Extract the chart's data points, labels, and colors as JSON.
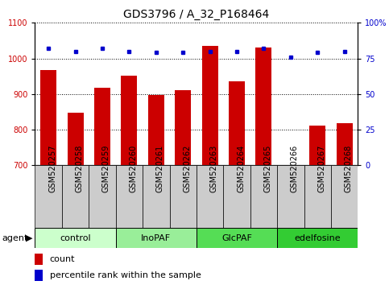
{
  "title": "GDS3796 / A_32_P168464",
  "samples": [
    "GSM520257",
    "GSM520258",
    "GSM520259",
    "GSM520260",
    "GSM520261",
    "GSM520262",
    "GSM520263",
    "GSM520264",
    "GSM520265",
    "GSM520266",
    "GSM520267",
    "GSM520268"
  ],
  "count_values": [
    968,
    848,
    918,
    952,
    898,
    912,
    1035,
    935,
    1030,
    700,
    812,
    818
  ],
  "percentile_values": [
    82,
    80,
    82,
    80,
    79,
    79,
    80,
    80,
    82,
    76,
    79,
    80
  ],
  "groups": [
    {
      "label": "control",
      "start": 0,
      "end": 3,
      "color": "#ccffcc"
    },
    {
      "label": "InoPAF",
      "start": 3,
      "end": 6,
      "color": "#99ee99"
    },
    {
      "label": "GlcPAF",
      "start": 6,
      "end": 9,
      "color": "#55dd55"
    },
    {
      "label": "edelfosine",
      "start": 9,
      "end": 12,
      "color": "#33cc33"
    }
  ],
  "ylim_left": [
    700,
    1100
  ],
  "ylim_right": [
    0,
    100
  ],
  "yticks_left": [
    700,
    800,
    900,
    1000,
    1100
  ],
  "yticks_right": [
    0,
    25,
    50,
    75,
    100
  ],
  "bar_color": "#cc0000",
  "dot_color": "#0000cc",
  "bar_width": 0.6,
  "background_color": "#ffffff",
  "plot_bg_color": "#ffffff",
  "label_box_color": "#cccccc",
  "grid_color": "#000000",
  "title_fontsize": 10,
  "tick_fontsize": 7,
  "label_fontsize": 8
}
